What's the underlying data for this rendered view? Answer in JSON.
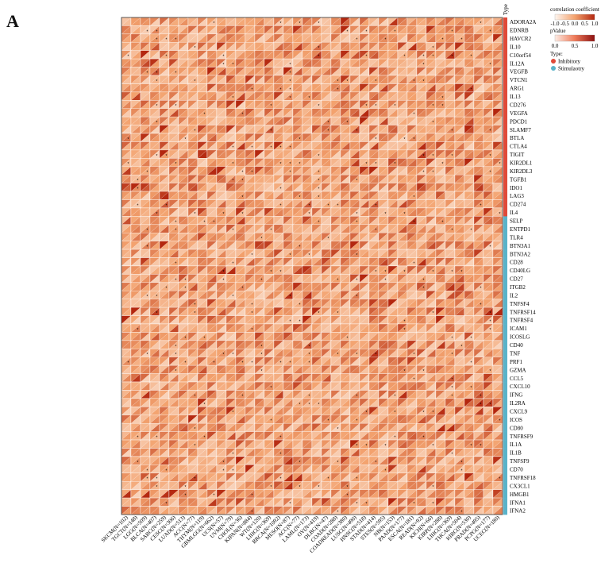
{
  "panel_label": "A",
  "colors": {
    "low": "#fbe8dc",
    "mid": "#f3a26e",
    "high": "#b4270f",
    "inhibitory": "#e04a39",
    "stimulatory": "#5ab3c9",
    "grid": "#ffffff"
  },
  "chart_data": {
    "type": "heatmap",
    "title": "",
    "type_column_label": "Type",
    "cell_style": "split-triangle (upper-left: correlation coefficient, lower-right: pValue)",
    "significance_marker": "*",
    "rows": [
      {
        "gene": "ADORA2A",
        "type": "Inhibitory"
      },
      {
        "gene": "EDNRB",
        "type": "Inhibitory"
      },
      {
        "gene": "HAVCR2",
        "type": "Inhibitory"
      },
      {
        "gene": "IL10",
        "type": "Inhibitory"
      },
      {
        "gene": "C10orf54",
        "type": "Inhibitory"
      },
      {
        "gene": "IL12A",
        "type": "Inhibitory"
      },
      {
        "gene": "VEGFB",
        "type": "Inhibitory"
      },
      {
        "gene": "VTCN1",
        "type": "Inhibitory"
      },
      {
        "gene": "ARG1",
        "type": "Inhibitory"
      },
      {
        "gene": "IL13",
        "type": "Inhibitory"
      },
      {
        "gene": "CD276",
        "type": "Inhibitory"
      },
      {
        "gene": "VEGFA",
        "type": "Inhibitory"
      },
      {
        "gene": "PDCD1",
        "type": "Inhibitory"
      },
      {
        "gene": "SLAMF7",
        "type": "Inhibitory"
      },
      {
        "gene": "BTLA",
        "type": "Inhibitory"
      },
      {
        "gene": "CTLA4",
        "type": "Inhibitory"
      },
      {
        "gene": "TIGIT",
        "type": "Inhibitory"
      },
      {
        "gene": "KIR2DL1",
        "type": "Inhibitory"
      },
      {
        "gene": "KIR2DL3",
        "type": "Inhibitory"
      },
      {
        "gene": "TGFB1",
        "type": "Inhibitory"
      },
      {
        "gene": "IDO1",
        "type": "Inhibitory"
      },
      {
        "gene": "LAG3",
        "type": "Inhibitory"
      },
      {
        "gene": "CD274",
        "type": "Inhibitory"
      },
      {
        "gene": "IL4",
        "type": "Inhibitory"
      },
      {
        "gene": "SELP",
        "type": "Stimulaotry"
      },
      {
        "gene": "ENTPD1",
        "type": "Stimulaotry"
      },
      {
        "gene": "TLR4",
        "type": "Stimulaotry"
      },
      {
        "gene": "BTN3A1",
        "type": "Stimulaotry"
      },
      {
        "gene": "BTN3A2",
        "type": "Stimulaotry"
      },
      {
        "gene": "CD28",
        "type": "Stimulaotry"
      },
      {
        "gene": "CD40LG",
        "type": "Stimulaotry"
      },
      {
        "gene": "CD27",
        "type": "Stimulaotry"
      },
      {
        "gene": "ITGB2",
        "type": "Stimulaotry"
      },
      {
        "gene": "IL2",
        "type": "Stimulaotry"
      },
      {
        "gene": "TNFSF4",
        "type": "Stimulaotry"
      },
      {
        "gene": "TNFRSF14",
        "type": "Stimulaotry"
      },
      {
        "gene": "TNFRSF4",
        "type": "Stimulaotry"
      },
      {
        "gene": "ICAM1",
        "type": "Stimulaotry"
      },
      {
        "gene": "ICOSLG",
        "type": "Stimulaotry"
      },
      {
        "gene": "CD40",
        "type": "Stimulaotry"
      },
      {
        "gene": "TNF",
        "type": "Stimulaotry"
      },
      {
        "gene": "PRF1",
        "type": "Stimulaotry"
      },
      {
        "gene": "GZMA",
        "type": "Stimulaotry"
      },
      {
        "gene": "CCL5",
        "type": "Stimulaotry"
      },
      {
        "gene": "CXCL10",
        "type": "Stimulaotry"
      },
      {
        "gene": "IFNG",
        "type": "Stimulaotry"
      },
      {
        "gene": "IL2RA",
        "type": "Stimulaotry"
      },
      {
        "gene": "CXCL9",
        "type": "Stimulaotry"
      },
      {
        "gene": "ICOS",
        "type": "Stimulaotry"
      },
      {
        "gene": "CD80",
        "type": "Stimulaotry"
      },
      {
        "gene": "TNFRSF9",
        "type": "Stimulaotry"
      },
      {
        "gene": "IL1A",
        "type": "Stimulaotry"
      },
      {
        "gene": "IL1B",
        "type": "Stimulaotry"
      },
      {
        "gene": "TNFSF9",
        "type": "Stimulaotry"
      },
      {
        "gene": "CD70",
        "type": "Stimulaotry"
      },
      {
        "gene": "TNFRSF18",
        "type": "Stimulaotry"
      },
      {
        "gene": "CX3CL1",
        "type": "Stimulaotry"
      },
      {
        "gene": "HMGB1",
        "type": "Stimulaotry"
      },
      {
        "gene": "IFNA1",
        "type": "Stimulaotry"
      },
      {
        "gene": "IFNA2",
        "type": "Stimulaotry"
      }
    ],
    "columns": [
      "SKCM(N=102)",
      "TGCT(N=148)",
      "LGG(N=509)",
      "BLCA(N=407)",
      "SARC(N=259)",
      "CESC(N=306)",
      "LUAD(N=513)",
      "ACC(N=77)",
      "THYM(N=119)",
      "GBMLGG(N=662)",
      "UCS(N=57)",
      "UVM(N=79)",
      "CHOL(N=36)",
      "KIPAN(N=884)",
      "WT(N=120)",
      "LIHC(N=369)",
      "BRCA(N=1092)",
      "MESO(N=87)",
      "ACC(N=77)",
      "LAML(N=173)",
      "OV(N=419)",
      "DLBC(N=47)",
      "COAD(N=288)",
      "COADREAD(N=380)",
      "LUSC(N=490)",
      "HNSC(N=518)",
      "STAD(N=414)",
      "STES(N=595)",
      "NB(N=153)",
      "PAAD(N=177)",
      "ESCA(N=181)",
      "READ(N=92)",
      "KICH(N=66)",
      "KIRP(N=288)",
      "LIHC(N=369)",
      "THCA(N=504)",
      "KIRC(N=530)",
      "PRAD(N=495)",
      "PCPG(N=177)",
      "UCEC(N=180)"
    ],
    "legend": {
      "correlation": {
        "label": "correlation coefficient",
        "range": [
          -1.0,
          1.0
        ],
        "ticks": [
          "-1.0",
          "-0.5",
          "0.0",
          "0.5",
          "1.0"
        ]
      },
      "pvalue": {
        "label": "pValue",
        "range": [
          0.0,
          1.0
        ],
        "ticks": [
          "0.0",
          "0.5",
          "1.0"
        ]
      },
      "type": {
        "label": "Type:",
        "entries": [
          "Inhibitory",
          "Stimulaotry"
        ]
      }
    }
  }
}
